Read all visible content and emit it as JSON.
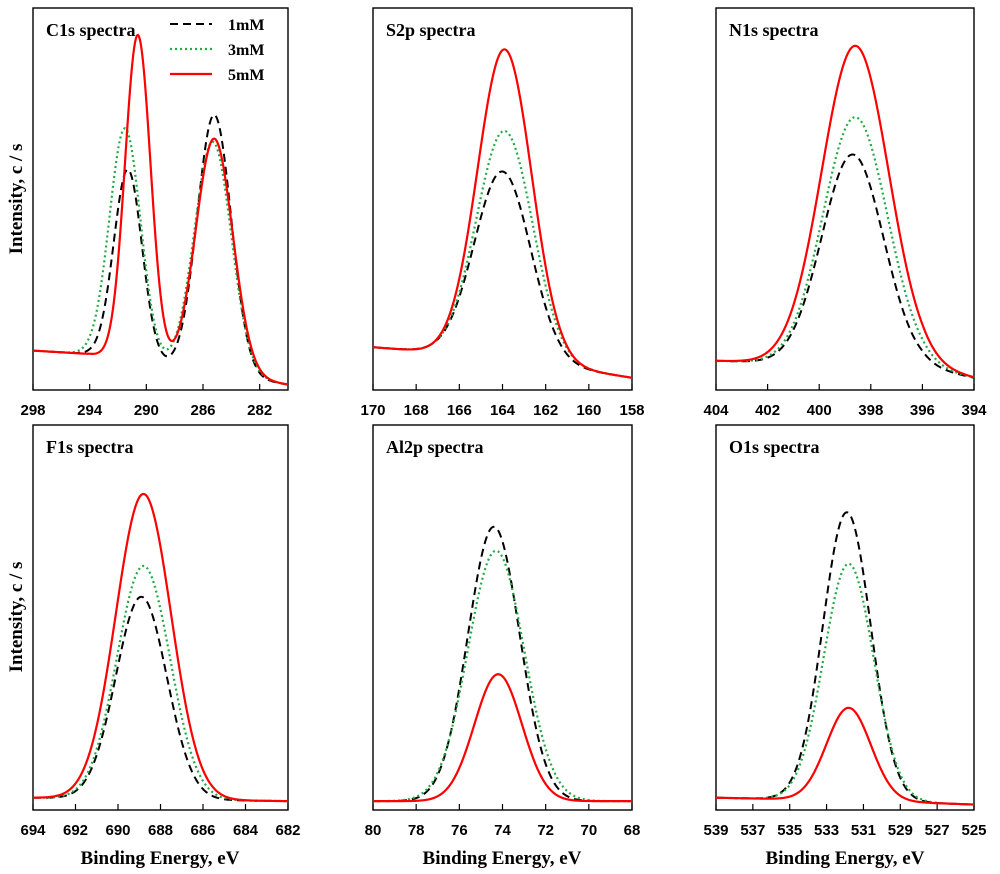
{
  "figure": {
    "ylabel": "Intensity, c / s",
    "xlabel": "Binding Energy, eV"
  },
  "legend": [
    {
      "label": "1mM",
      "color": "#000000",
      "style": "dashed"
    },
    {
      "label": "3mM",
      "color": "#22aa44",
      "style": "dotted"
    },
    {
      "label": "5mM",
      "color": "#ff0000",
      "style": "solid"
    }
  ],
  "chart_data": [
    {
      "type": "line",
      "title": "C1s spectra",
      "xlim": [
        298,
        280
      ],
      "xticks": [
        298,
        294,
        290,
        286,
        282
      ],
      "ylim": [
        0,
        100
      ],
      "baseline": [
        [
          298,
          11
        ],
        [
          294,
          10
        ],
        [
          280,
          1
        ]
      ],
      "series": [
        {
          "name": "1mM",
          "peaks": [
            [
              291.3,
              56,
              1.0
            ],
            [
              285.2,
              76,
              1.2
            ]
          ]
        },
        {
          "name": "3mM",
          "peaks": [
            [
              291.5,
              68,
              1.1
            ],
            [
              285.3,
              68,
              1.3
            ]
          ]
        },
        {
          "name": "5mM",
          "peaks": [
            [
              290.6,
              96,
              0.9
            ],
            [
              285.2,
              69,
              1.3
            ]
          ]
        }
      ]
    },
    {
      "type": "line",
      "title": "S2p spectra",
      "xlim": [
        170,
        158
      ],
      "xticks": [
        170,
        168,
        166,
        164,
        162,
        160,
        158
      ],
      "ylim": [
        0,
        100
      ],
      "baseline": [
        [
          170,
          12
        ],
        [
          166,
          10
        ],
        [
          163,
          8
        ],
        [
          158,
          3
        ]
      ],
      "series": [
        {
          "name": "1mM",
          "peaks": [
            [
              164.0,
              55,
              1.3
            ]
          ]
        },
        {
          "name": "3mM",
          "peaks": [
            [
              163.9,
              67,
              1.3
            ]
          ]
        },
        {
          "name": "5mM",
          "peaks": [
            [
              163.9,
              91,
              1.25
            ]
          ]
        }
      ]
    },
    {
      "type": "line",
      "title": "N1s spectra",
      "xlim": [
        404,
        394
      ],
      "xticks": [
        404,
        402,
        400,
        398,
        396,
        394
      ],
      "ylim": [
        0,
        100
      ],
      "baseline": [
        [
          404,
          8
        ],
        [
          400,
          7
        ],
        [
          396,
          6
        ],
        [
          394,
          3
        ]
      ],
      "series": [
        {
          "name": "1mM",
          "peaks": [
            [
              398.7,
              62,
              1.2
            ]
          ]
        },
        {
          "name": "3mM",
          "peaks": [
            [
              398.6,
              73,
              1.25
            ]
          ]
        },
        {
          "name": "5mM",
          "peaks": [
            [
              398.6,
              94,
              1.3
            ]
          ]
        }
      ]
    },
    {
      "type": "line",
      "title": "F1s spectra",
      "xlim": [
        694,
        682
      ],
      "xticks": [
        694,
        692,
        690,
        688,
        686,
        684,
        682
      ],
      "ylim": [
        0,
        100
      ],
      "baseline": [
        [
          694,
          3
        ],
        [
          682,
          2
        ]
      ],
      "series": [
        {
          "name": "1mM",
          "peaks": [
            [
              688.9,
              59,
              1.2
            ]
          ]
        },
        {
          "name": "3mM",
          "peaks": [
            [
              688.8,
              68,
              1.25
            ]
          ]
        },
        {
          "name": "5mM",
          "peaks": [
            [
              688.8,
              89,
              1.3
            ]
          ]
        }
      ]
    },
    {
      "type": "line",
      "title": "Al2p spectra",
      "xlim": [
        80,
        68
      ],
      "xticks": [
        80,
        78,
        76,
        74,
        72,
        70,
        68
      ],
      "ylim": [
        0,
        100
      ],
      "baseline": [
        [
          80,
          2
        ],
        [
          68,
          2
        ]
      ],
      "series": [
        {
          "name": "1mM",
          "peaks": [
            [
              74.4,
              80,
              1.2
            ]
          ]
        },
        {
          "name": "3mM",
          "peaks": [
            [
              74.3,
              73,
              1.3
            ]
          ]
        },
        {
          "name": "5mM",
          "peaks": [
            [
              74.2,
              37,
              1.1
            ]
          ]
        }
      ]
    },
    {
      "type": "line",
      "title": "O1s spectra",
      "xlim": [
        539,
        525
      ],
      "xticks": [
        539,
        537,
        535,
        533,
        531,
        529,
        527,
        525
      ],
      "ylim": [
        0,
        100
      ],
      "baseline": [
        [
          539,
          3
        ],
        [
          530,
          2
        ],
        [
          525,
          1
        ]
      ],
      "series": [
        {
          "name": "1mM",
          "peaks": [
            [
              531.9,
              84,
              1.3
            ]
          ]
        },
        {
          "name": "3mM",
          "peaks": [
            [
              531.8,
              69,
              1.35
            ]
          ]
        },
        {
          "name": "5mM",
          "peaks": [
            [
              531.8,
              27,
              1.2
            ]
          ]
        }
      ]
    }
  ]
}
